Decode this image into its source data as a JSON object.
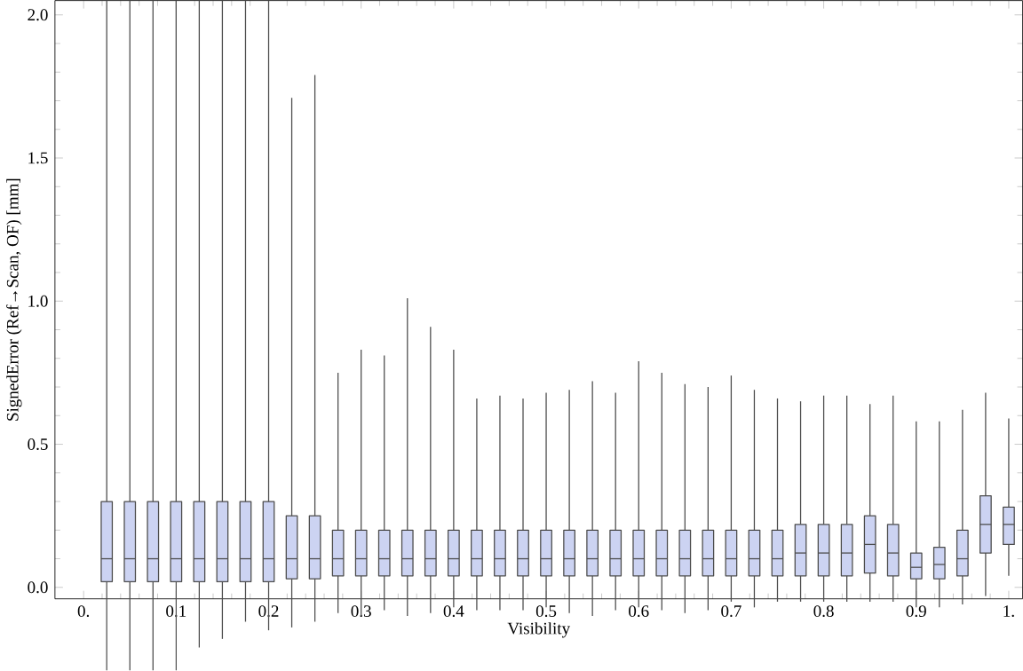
{
  "chart_data": {
    "type": "box",
    "xlabel": "Visibility",
    "ylabel": "SignedError (Ref→Scan, OF) [mm]",
    "color": "#ccd3f2",
    "x": [
      0.025,
      0.05,
      0.075,
      0.1,
      0.125,
      0.15,
      0.175,
      0.2,
      0.225,
      0.25,
      0.275,
      0.3,
      0.325,
      0.35,
      0.375,
      0.4,
      0.425,
      0.45,
      0.475,
      0.5,
      0.525,
      0.55,
      0.575,
      0.6,
      0.625,
      0.65,
      0.675,
      0.7,
      0.725,
      0.75,
      0.775,
      0.8,
      0.825,
      0.85,
      0.875,
      0.9,
      0.925,
      0.95,
      0.975,
      1.0
    ],
    "boxes": [
      {
        "low": -0.29,
        "q1": 0.02,
        "median": 0.1,
        "q3": 0.3,
        "high": 2.05
      },
      {
        "low": -0.29,
        "q1": 0.02,
        "median": 0.1,
        "q3": 0.3,
        "high": 2.05
      },
      {
        "low": -0.29,
        "q1": 0.02,
        "median": 0.1,
        "q3": 0.3,
        "high": 2.05
      },
      {
        "low": -0.29,
        "q1": 0.02,
        "median": 0.1,
        "q3": 0.3,
        "high": 2.05
      },
      {
        "low": -0.21,
        "q1": 0.02,
        "median": 0.1,
        "q3": 0.3,
        "high": 2.05
      },
      {
        "low": -0.18,
        "q1": 0.02,
        "median": 0.1,
        "q3": 0.3,
        "high": 2.05
      },
      {
        "low": -0.12,
        "q1": 0.02,
        "median": 0.1,
        "q3": 0.3,
        "high": 2.05
      },
      {
        "low": -0.15,
        "q1": 0.02,
        "median": 0.1,
        "q3": 0.3,
        "high": 2.05
      },
      {
        "low": -0.14,
        "q1": 0.03,
        "median": 0.1,
        "q3": 0.25,
        "high": 1.71
      },
      {
        "low": -0.12,
        "q1": 0.03,
        "median": 0.1,
        "q3": 0.25,
        "high": 1.79
      },
      {
        "low": -0.09,
        "q1": 0.04,
        "median": 0.1,
        "q3": 0.2,
        "high": 0.75
      },
      {
        "low": -0.1,
        "q1": 0.04,
        "median": 0.1,
        "q3": 0.2,
        "high": 0.83
      },
      {
        "low": -0.08,
        "q1": 0.04,
        "median": 0.1,
        "q3": 0.2,
        "high": 0.81
      },
      {
        "low": -0.1,
        "q1": 0.04,
        "median": 0.1,
        "q3": 0.2,
        "high": 1.01
      },
      {
        "low": -0.09,
        "q1": 0.04,
        "median": 0.1,
        "q3": 0.2,
        "high": 0.91
      },
      {
        "low": -0.07,
        "q1": 0.04,
        "median": 0.1,
        "q3": 0.2,
        "high": 0.83
      },
      {
        "low": -0.08,
        "q1": 0.04,
        "median": 0.1,
        "q3": 0.2,
        "high": 0.66
      },
      {
        "low": -0.08,
        "q1": 0.04,
        "median": 0.1,
        "q3": 0.2,
        "high": 0.67
      },
      {
        "low": -0.08,
        "q1": 0.04,
        "median": 0.1,
        "q3": 0.2,
        "high": 0.66
      },
      {
        "low": -0.07,
        "q1": 0.04,
        "median": 0.1,
        "q3": 0.2,
        "high": 0.68
      },
      {
        "low": -0.09,
        "q1": 0.04,
        "median": 0.1,
        "q3": 0.2,
        "high": 0.69
      },
      {
        "low": -0.1,
        "q1": 0.04,
        "median": 0.1,
        "q3": 0.2,
        "high": 0.72
      },
      {
        "low": -0.08,
        "q1": 0.04,
        "median": 0.1,
        "q3": 0.2,
        "high": 0.68
      },
      {
        "low": -0.07,
        "q1": 0.04,
        "median": 0.1,
        "q3": 0.2,
        "high": 0.79
      },
      {
        "low": -0.08,
        "q1": 0.04,
        "median": 0.1,
        "q3": 0.2,
        "high": 0.75
      },
      {
        "low": -0.09,
        "q1": 0.04,
        "median": 0.1,
        "q3": 0.2,
        "high": 0.71
      },
      {
        "low": -0.08,
        "q1": 0.04,
        "median": 0.1,
        "q3": 0.2,
        "high": 0.7
      },
      {
        "low": -0.05,
        "q1": 0.04,
        "median": 0.1,
        "q3": 0.2,
        "high": 0.74
      },
      {
        "low": -0.07,
        "q1": 0.04,
        "median": 0.1,
        "q3": 0.2,
        "high": 0.69
      },
      {
        "low": -0.05,
        "q1": 0.04,
        "median": 0.1,
        "q3": 0.2,
        "high": 0.66
      },
      {
        "low": -0.05,
        "q1": 0.04,
        "median": 0.12,
        "q3": 0.22,
        "high": 0.65
      },
      {
        "low": -0.05,
        "q1": 0.04,
        "median": 0.12,
        "q3": 0.22,
        "high": 0.67
      },
      {
        "low": -0.05,
        "q1": 0.04,
        "median": 0.12,
        "q3": 0.22,
        "high": 0.67
      },
      {
        "low": -0.05,
        "q1": 0.05,
        "median": 0.15,
        "q3": 0.25,
        "high": 0.64
      },
      {
        "low": -0.05,
        "q1": 0.04,
        "median": 0.12,
        "q3": 0.22,
        "high": 0.67
      },
      {
        "low": -0.07,
        "q1": 0.03,
        "median": 0.07,
        "q3": 0.12,
        "high": 0.58
      },
      {
        "low": -0.07,
        "q1": 0.03,
        "median": 0.08,
        "q3": 0.14,
        "high": 0.58
      },
      {
        "low": -0.06,
        "q1": 0.04,
        "median": 0.1,
        "q3": 0.2,
        "high": 0.62
      },
      {
        "low": -0.03,
        "q1": 0.12,
        "median": 0.22,
        "q3": 0.32,
        "high": 0.68
      },
      {
        "low": 0.04,
        "q1": 0.15,
        "median": 0.22,
        "q3": 0.28,
        "high": 0.59
      }
    ],
    "xlim": [
      -0.031,
      1.015
    ],
    "ylim": [
      -0.04,
      2.05
    ],
    "xticks": [
      {
        "value": 0,
        "label": "0."
      },
      0.1,
      0.2,
      0.3,
      0.4,
      0.5,
      0.6,
      0.7,
      0.8,
      0.9,
      {
        "value": 1,
        "label": "1."
      }
    ],
    "yticks": [
      {
        "value": 0,
        "label": "0.0"
      },
      0.5,
      {
        "value": 1,
        "label": "1.0"
      },
      1.5,
      {
        "value": 2,
        "label": "2.0"
      }
    ]
  }
}
